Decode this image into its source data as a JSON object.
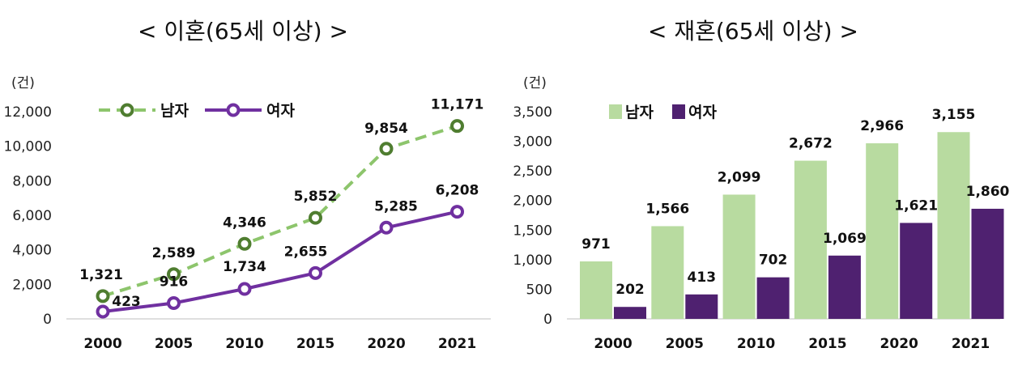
{
  "chart_data": [
    {
      "type": "line",
      "title": "< 이혼(65세 이상) >",
      "unit": "(건)",
      "x": [
        "2000",
        "2005",
        "2010",
        "2015",
        "2020",
        "2021"
      ],
      "ylim": [
        0,
        12000
      ],
      "yticks": [
        "0",
        "2,000",
        "4,000",
        "6,000",
        "8,000",
        "10,000",
        "12,000"
      ],
      "ytick_values": [
        0,
        2000,
        4000,
        6000,
        8000,
        10000,
        12000
      ],
      "grid": false,
      "legend_position": "top-left",
      "series": [
        {
          "name": "남자",
          "values": [
            1321,
            2589,
            4346,
            5852,
            9854,
            11171
          ],
          "labels": [
            "1,321",
            "2,589",
            "4,346",
            "5,852",
            "9,854",
            "11,171"
          ],
          "color": "#8dc56c",
          "marker_color": "#4f7d30",
          "style": "dashed"
        },
        {
          "name": "여자",
          "values": [
            423,
            916,
            1734,
            2655,
            5285,
            6208
          ],
          "labels": [
            "423",
            "916",
            "1,734",
            "2,655",
            "5,285",
            "6,208"
          ],
          "color": "#7030a0",
          "marker_color": "#7030a0",
          "style": "solid"
        }
      ]
    },
    {
      "type": "bar",
      "title": "< 재혼(65세 이상) >",
      "unit": "(건)",
      "categories": [
        "2000",
        "2005",
        "2010",
        "2015",
        "2020",
        "2021"
      ],
      "ylim": [
        0,
        3500
      ],
      "yticks": [
        "0",
        "500",
        "1,000",
        "1,500",
        "2,000",
        "2,500",
        "3,000",
        "3,500"
      ],
      "ytick_values": [
        0,
        500,
        1000,
        1500,
        2000,
        2500,
        3000,
        3500
      ],
      "grid": false,
      "legend_position": "top-left",
      "series": [
        {
          "name": "남자",
          "values": [
            971,
            1566,
            2099,
            2672,
            2966,
            3155
          ],
          "labels": [
            "971",
            "1,566",
            "2,099",
            "2,672",
            "2,966",
            "3,155"
          ],
          "color": "#b8dba0"
        },
        {
          "name": "여자",
          "values": [
            202,
            413,
            702,
            1069,
            1621,
            1860
          ],
          "labels": [
            "202",
            "413",
            "702",
            "1,069",
            "1,621",
            "1,860"
          ],
          "color": "#4f2170"
        }
      ]
    }
  ]
}
